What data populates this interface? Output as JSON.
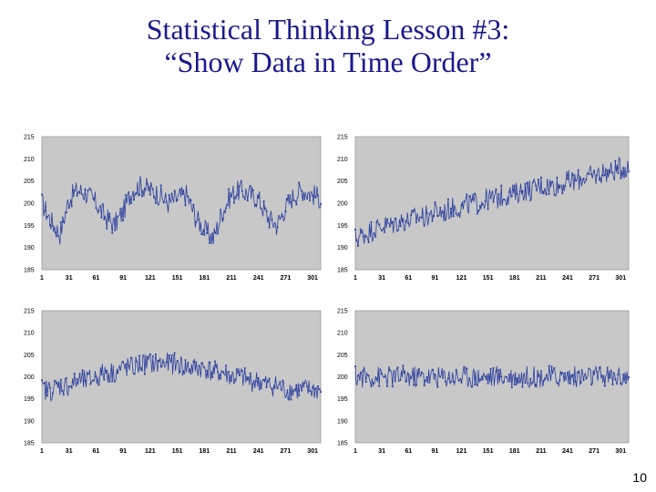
{
  "slide": {
    "title_line1": "Statistical Thinking Lesson #3:",
    "title_line2": "“Show Data in Time Order”",
    "page_number": "10"
  },
  "colors": {
    "line": "#2b3f9e",
    "plot_bg": "#c8c8c8",
    "title": "#1a1a8c"
  },
  "chart_data": [
    {
      "type": "line",
      "title": "",
      "xlabel": "",
      "ylabel": "",
      "pattern": "periodic dips",
      "x_ticks": [
        "1",
        "31",
        "61",
        "91",
        "121",
        "151",
        "181",
        "211",
        "241",
        "271",
        "301"
      ],
      "y_ticks": [
        "185",
        "190",
        "195",
        "200",
        "205",
        "210",
        "215"
      ],
      "xlim": [
        1,
        310
      ],
      "ylim": [
        185,
        215
      ],
      "grid": false,
      "series": [
        {
          "x_start": 1,
          "x_step": 10,
          "values": [
            200,
            196,
            193,
            201,
            203,
            202,
            200,
            197,
            195,
            198,
            203,
            204,
            203,
            202,
            200,
            201,
            202,
            197,
            194,
            192,
            198,
            202,
            203,
            202,
            201,
            197,
            195,
            199,
            202,
            203,
            202,
            201
          ]
        }
      ]
    },
    {
      "type": "line",
      "title": "",
      "xlabel": "",
      "ylabel": "",
      "pattern": "upward trend",
      "x_ticks": [
        "1",
        "31",
        "61",
        "91",
        "121",
        "151",
        "181",
        "211",
        "241",
        "271",
        "301"
      ],
      "y_ticks": [
        "185",
        "190",
        "195",
        "200",
        "205",
        "210",
        "215"
      ],
      "xlim": [
        1,
        310
      ],
      "ylim": [
        185,
        215
      ],
      "grid": false,
      "series": [
        {
          "x_start": 1,
          "x_step": 10,
          "values": [
            192,
            193,
            194,
            195,
            195,
            196,
            196,
            197,
            197,
            198,
            198,
            199,
            199,
            200,
            200,
            201,
            201,
            202,
            202,
            203,
            203,
            204,
            204,
            204,
            205,
            205,
            206,
            206,
            207,
            207,
            208,
            208
          ]
        }
      ]
    },
    {
      "type": "line",
      "title": "",
      "xlabel": "",
      "ylabel": "",
      "pattern": "rise then fall",
      "x_ticks": [
        "1",
        "31",
        "61",
        "91",
        "121",
        "151",
        "181",
        "211",
        "241",
        "271",
        "301"
      ],
      "y_ticks": [
        "185",
        "190",
        "195",
        "200",
        "205",
        "210",
        "215"
      ],
      "xlim": [
        1,
        310
      ],
      "ylim": [
        185,
        215
      ],
      "grid": false,
      "series": [
        {
          "x_start": 1,
          "x_step": 10,
          "values": [
            197,
            197,
            198,
            198,
            199,
            199,
            200,
            201,
            201,
            202,
            202,
            203,
            203,
            203,
            203,
            203,
            202,
            202,
            202,
            201,
            201,
            200,
            200,
            199,
            199,
            198,
            198,
            197,
            197,
            197,
            197,
            197
          ]
        }
      ]
    },
    {
      "type": "line",
      "title": "",
      "xlabel": "",
      "ylabel": "",
      "pattern": "stable around 200",
      "x_ticks": [
        "1",
        "31",
        "61",
        "91",
        "121",
        "151",
        "181",
        "211",
        "241",
        "271",
        "301"
      ],
      "y_ticks": [
        "185",
        "190",
        "195",
        "200",
        "205",
        "210",
        "215"
      ],
      "xlim": [
        1,
        310
      ],
      "ylim": [
        185,
        215
      ],
      "grid": false,
      "series": [
        {
          "x_start": 1,
          "x_step": 10,
          "values": [
            200,
            200,
            200,
            200,
            200,
            200,
            200,
            200,
            200,
            200,
            200,
            200,
            200,
            200,
            200,
            200,
            200,
            200,
            200,
            200,
            200,
            200,
            200,
            200,
            200,
            200,
            200,
            200,
            200,
            200,
            200,
            200
          ]
        }
      ]
    }
  ]
}
